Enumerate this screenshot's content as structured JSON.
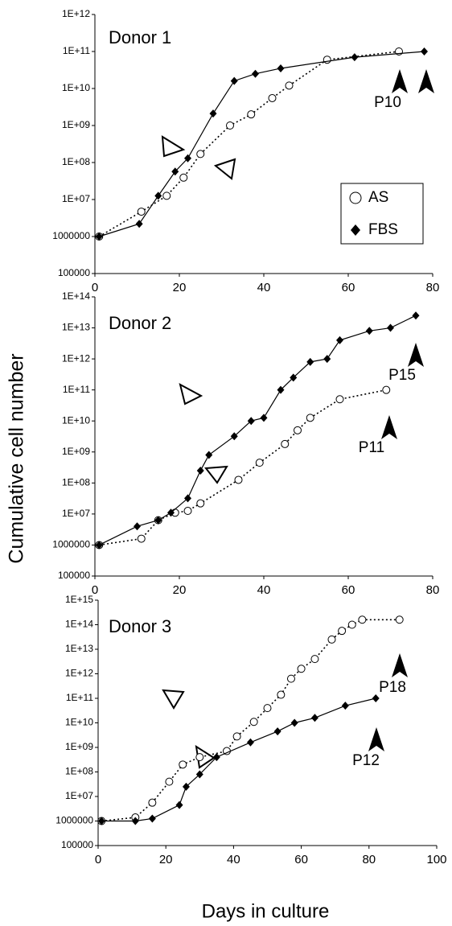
{
  "ylabel": "Cumulative cell number",
  "xlabel": "Days in culture",
  "chart_data": [
    {
      "type": "line",
      "title": "Donor 1",
      "annotations": [
        "P10"
      ],
      "log_y": true,
      "legend": "lower right",
      "xlim": [
        0,
        80
      ],
      "xticks": [
        0,
        20,
        40,
        60,
        80
      ],
      "ylim": [
        100000,
        1000000000000.0
      ],
      "yticks": [
        100000,
        1000000,
        {
          "value": 10000000.0,
          "label": "1E+07"
        },
        {
          "value": 100000000.0,
          "label": "1E+08"
        },
        {
          "value": 1000000000.0,
          "label": "1E+09"
        },
        {
          "value": 10000000000.0,
          "label": "1E+10"
        },
        {
          "value": 100000000000.0,
          "label": "1E+11"
        },
        {
          "value": 1000000000000.0,
          "label": "1E+12"
        }
      ],
      "series": [
        {
          "name": "AS",
          "color": "#000000",
          "marker": "circle",
          "linestyle": "dotted",
          "x": [
            1,
            11,
            17,
            21,
            25,
            32,
            37,
            42,
            46,
            55,
            72
          ],
          "values": [
            1000000,
            4700000,
            12600000,
            39000000,
            170000000,
            1000000000,
            2000000000,
            5500000000,
            12000000000,
            60000000000,
            100000000000
          ]
        },
        {
          "name": "FBS",
          "color": "#000000",
          "marker": "diamond",
          "linestyle": "solid",
          "x": [
            1,
            10.5,
            15,
            19,
            22,
            28,
            33,
            38,
            44,
            61.5,
            78
          ],
          "values": [
            1000000,
            2200000,
            12600000,
            57000000,
            130000000,
            2100000000,
            16000000000,
            25000000000,
            35000000000,
            70000000000,
            100000000000
          ]
        }
      ]
    },
    {
      "type": "line",
      "title": "Donor 2",
      "annotations": [
        "P15",
        "P11"
      ],
      "log_y": true,
      "xlim": [
        0,
        80
      ],
      "xticks": [
        0,
        20,
        40,
        60,
        80
      ],
      "ylim": [
        100000,
        100000000000000.0
      ],
      "yticks": [
        100000,
        1000000,
        {
          "value": 10000000.0,
          "label": "1E+07"
        },
        {
          "value": 100000000.0,
          "label": "1E+08"
        },
        {
          "value": 1000000000.0,
          "label": "1E+09"
        },
        {
          "value": 10000000000.0,
          "label": "1E+10"
        },
        {
          "value": 100000000000.0,
          "label": "1E+11"
        },
        {
          "value": 1000000000000.0,
          "label": "1E+12"
        },
        {
          "value": 10000000000000.0,
          "label": "1E+13"
        },
        {
          "value": 100000000000000.0,
          "label": "1E+14"
        }
      ],
      "series": [
        {
          "color": "#000000",
          "marker": "circle",
          "linestyle": "dotted",
          "x": [
            1,
            11,
            15,
            19,
            22,
            25,
            34,
            39,
            45,
            48,
            51,
            58,
            69
          ],
          "values": [
            1000000,
            1600000,
            6300000,
            11000000,
            12600000,
            22000000,
            126000000,
            450000000,
            1800000000,
            5000000000,
            12600000000,
            50000000000,
            100000000000
          ]
        },
        {
          "color": "#000000",
          "marker": "diamond",
          "linestyle": "solid",
          "x": [
            1,
            10,
            15,
            18,
            22,
            25,
            27,
            33,
            37,
            40,
            44,
            47,
            51,
            55,
            58,
            65,
            70,
            76
          ],
          "values": [
            1000000,
            4000000,
            6300000,
            11000000,
            32000000,
            250000000,
            800000000,
            3200000000,
            10000000000,
            12600000000,
            100000000000,
            250000000000,
            800000000000,
            1000000000000,
            4000000000000,
            8000000000000,
            10000000000000,
            25000000000000
          ]
        }
      ]
    },
    {
      "type": "line",
      "title": "Donor 3",
      "annotations": [
        "P18",
        "P12"
      ],
      "log_y": true,
      "xlim": [
        0,
        100
      ],
      "xticks": [
        0,
        20,
        40,
        60,
        80,
        100
      ],
      "ylim": [
        100000,
        1000000000000000.0
      ],
      "yticks": [
        100000,
        1000000,
        {
          "value": 10000000.0,
          "label": "1E+07"
        },
        {
          "value": 100000000.0,
          "label": "1E+08"
        },
        {
          "value": 1000000000.0,
          "label": "1E+09"
        },
        {
          "value": 10000000000.0,
          "label": "1E+10"
        },
        {
          "value": 100000000000.0,
          "label": "1E+11"
        },
        {
          "value": 1000000000000.0,
          "label": "1E+12"
        },
        {
          "value": 10000000000000.0,
          "label": "1E+13"
        },
        {
          "value": 100000000000000.0,
          "label": "1E+14"
        },
        {
          "value": 1000000000000000.0,
          "label": "1E+15"
        }
      ],
      "series": [
        {
          "color": "#000000",
          "marker": "circle",
          "linestyle": "dotted",
          "x": [
            1,
            11,
            16,
            21,
            25,
            30,
            38,
            41,
            46,
            50,
            54,
            57,
            60,
            64,
            69,
            72,
            75,
            78,
            89
          ],
          "values": [
            1000000,
            1400000,
            5600000,
            40000000,
            200000000,
            400000000,
            710000000,
            2800000000,
            11000000000,
            40000000000,
            140000000000,
            630000000000,
            1600000000000,
            4000000000000,
            25000000000000,
            56000000000000,
            100000000000000,
            160000000000000,
            160000000000000
          ]
        },
        {
          "color": "#000000",
          "marker": "diamond",
          "linestyle": "solid",
          "x": [
            1,
            11,
            16,
            24,
            26,
            30,
            35,
            45,
            53,
            58,
            64,
            73,
            82
          ],
          "values": [
            1000000,
            1000000,
            1260000,
            4500000,
            25000000,
            80000000,
            400000000,
            1600000000,
            4500000000,
            10000000000,
            16000000000,
            50000000000,
            100000000000
          ]
        }
      ]
    }
  ]
}
